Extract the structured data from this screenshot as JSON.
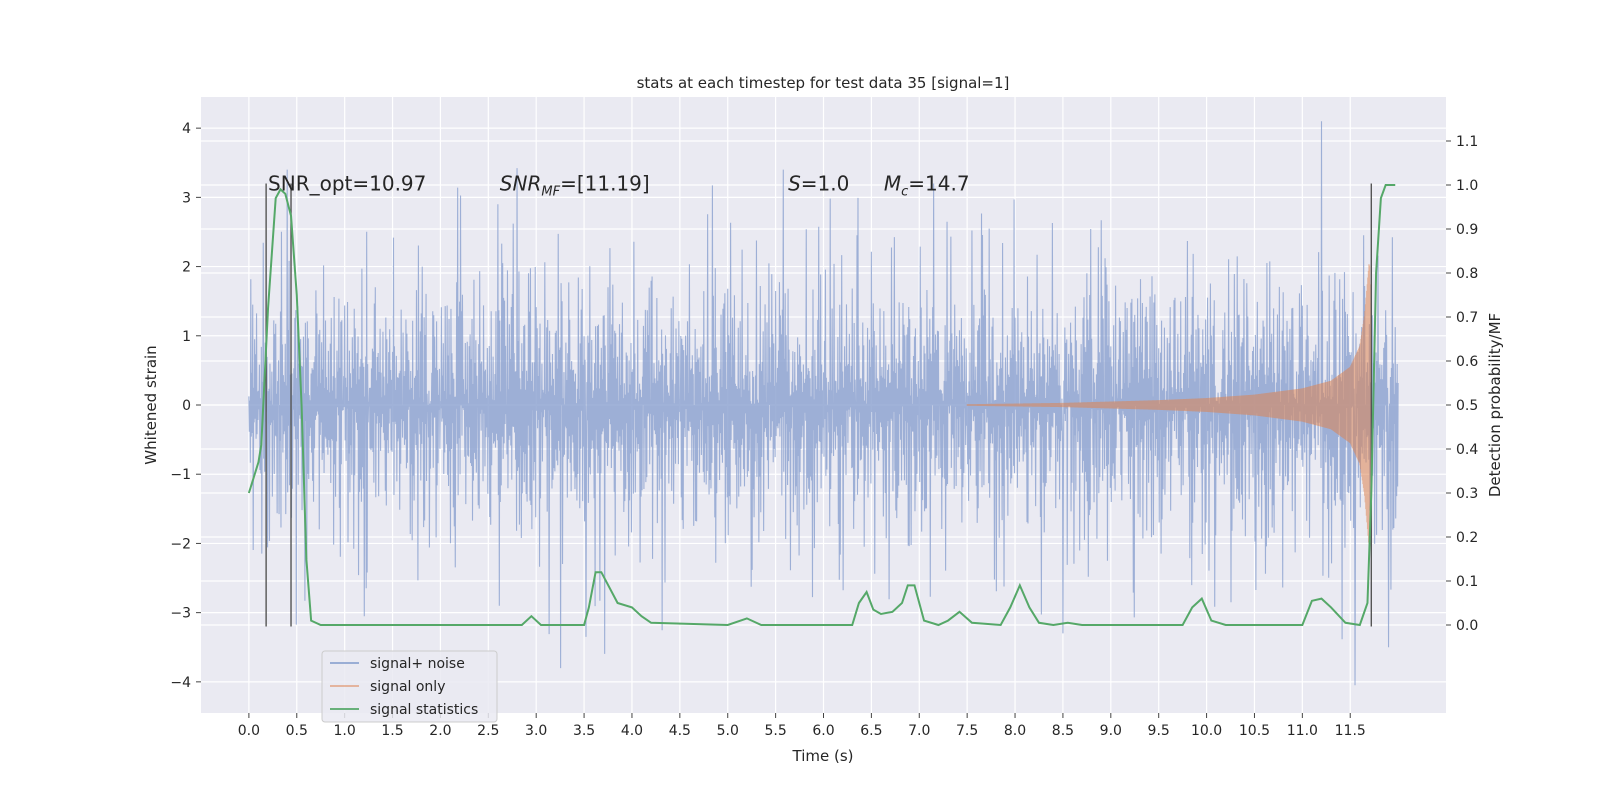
{
  "chart_data": {
    "type": "line",
    "title": "stats at each timestep for test data 35 [signal=1]",
    "xlabel": "Time (s)",
    "ylabel": "Whitened strain",
    "y2label": "Detection probability/MF",
    "xlim": [
      -0.5,
      12.5
    ],
    "ylim": [
      -4.45,
      4.45
    ],
    "y2lim": [
      -0.2,
      1.2
    ],
    "grid": true,
    "legend_position": "lower-left",
    "x_ticks": [
      "0.0",
      "0.5",
      "1.0",
      "1.5",
      "2.0",
      "2.5",
      "3.0",
      "3.5",
      "4.0",
      "4.5",
      "5.0",
      "5.5",
      "6.0",
      "6.5",
      "7.0",
      "7.5",
      "8.0",
      "8.5",
      "9.0",
      "9.5",
      "10.0",
      "10.5",
      "11.0",
      "11.5"
    ],
    "x_tick_values": [
      0.0,
      0.5,
      1.0,
      1.5,
      2.0,
      2.5,
      3.0,
      3.5,
      4.0,
      4.5,
      5.0,
      5.5,
      6.0,
      6.5,
      7.0,
      7.5,
      8.0,
      8.5,
      9.0,
      9.5,
      10.0,
      10.5,
      11.0,
      11.5
    ],
    "y_ticks": [
      "4",
      "3",
      "2",
      "1",
      "0",
      "−1",
      "−2",
      "−3",
      "−4"
    ],
    "y_tick_values": [
      4,
      3,
      2,
      1,
      0,
      -1,
      -2,
      -3,
      -4
    ],
    "y2_ticks": [
      "1.1",
      "1.0",
      "0.9",
      "0.8",
      "0.7",
      "0.6",
      "0.5",
      "0.4",
      "0.3",
      "0.2",
      "0.1",
      "0.0"
    ],
    "y2_tick_values": [
      1.1,
      1.0,
      0.9,
      0.8,
      0.7,
      0.6,
      0.5,
      0.4,
      0.3,
      0.2,
      0.1,
      0.0
    ],
    "annotations": [
      {
        "text": "SNR_opt=10.97",
        "x": 0.2,
        "y": 3.2
      },
      {
        "text": "SNR_MF=[11.19]",
        "x": 2.62,
        "y": 3.2
      },
      {
        "text": "S=1.0",
        "x": 5.63,
        "y": 3.2
      },
      {
        "text": "M_c=14.7",
        "x": 6.63,
        "y": 3.2
      }
    ],
    "vertical_markers": [
      {
        "x": 0.18,
        "ymin": -3.2,
        "ymax": 3.2
      },
      {
        "x": 0.44,
        "ymin": -3.2,
        "ymax": 3.2
      },
      {
        "x": 11.72,
        "ymin": -3.2,
        "ymax": 3.2
      }
    ],
    "series": [
      {
        "name": "signal+ noise",
        "color": "#8fa5d1",
        "t_range": [
          0.0,
          12.0
        ],
        "envelope": "noise with typical amplitude about 1.3 and peaks up to about 3.5, extreme peak 4.1 near t=11.2 and minimum -4.0 near t=11.55",
        "peaks": [
          {
            "x": 0.4,
            "y": 3.4
          },
          {
            "x": 2.6,
            "y": 2.9
          },
          {
            "x": 3.52,
            "y": -3.35
          },
          {
            "x": 5.58,
            "y": 3.4
          },
          {
            "x": 7.15,
            "y": 3.2
          },
          {
            "x": 8.5,
            "y": -3.3
          },
          {
            "x": 11.2,
            "y": 4.1
          },
          {
            "x": 11.55,
            "y": -4.05
          },
          {
            "x": 11.9,
            "y": -3.5
          }
        ]
      },
      {
        "name": "signal only",
        "color": "#dd8452",
        "t_range": [
          7.5,
          11.8
        ],
        "envelope_points": [
          {
            "x": 7.5,
            "y": 0.01
          },
          {
            "x": 8.5,
            "y": 0.03
          },
          {
            "x": 9.5,
            "y": 0.07
          },
          {
            "x": 10.0,
            "y": 0.1
          },
          {
            "x": 10.5,
            "y": 0.15
          },
          {
            "x": 11.0,
            "y": 0.24
          },
          {
            "x": 11.3,
            "y": 0.35
          },
          {
            "x": 11.5,
            "y": 0.55
          },
          {
            "x": 11.6,
            "y": 0.85
          },
          {
            "x": 11.65,
            "y": 1.3
          },
          {
            "x": 11.7,
            "y": 2.1
          },
          {
            "x": 11.72,
            "y": 1.2
          }
        ]
      },
      {
        "name": "signal statistics",
        "color": "#55a868",
        "axis": "y2",
        "points": [
          {
            "x": 0.0,
            "y": 0.3
          },
          {
            "x": 0.1,
            "y": 0.37
          },
          {
            "x": 0.13,
            "y": 0.41
          },
          {
            "x": 0.2,
            "y": 0.72
          },
          {
            "x": 0.28,
            "y": 0.97
          },
          {
            "x": 0.33,
            "y": 0.99
          },
          {
            "x": 0.38,
            "y": 0.98
          },
          {
            "x": 0.44,
            "y": 0.93
          },
          {
            "x": 0.5,
            "y": 0.75
          },
          {
            "x": 0.55,
            "y": 0.5
          },
          {
            "x": 0.6,
            "y": 0.15
          },
          {
            "x": 0.65,
            "y": 0.01
          },
          {
            "x": 0.75,
            "y": 0.0
          },
          {
            "x": 2.85,
            "y": 0.0
          },
          {
            "x": 2.95,
            "y": 0.02
          },
          {
            "x": 3.05,
            "y": 0.0
          },
          {
            "x": 3.5,
            "y": 0.0
          },
          {
            "x": 3.55,
            "y": 0.04
          },
          {
            "x": 3.62,
            "y": 0.12
          },
          {
            "x": 3.68,
            "y": 0.12
          },
          {
            "x": 3.85,
            "y": 0.05
          },
          {
            "x": 4.0,
            "y": 0.04
          },
          {
            "x": 4.1,
            "y": 0.02
          },
          {
            "x": 4.2,
            "y": 0.005
          },
          {
            "x": 5.0,
            "y": 0.0
          },
          {
            "x": 5.2,
            "y": 0.015
          },
          {
            "x": 5.35,
            "y": 0.0
          },
          {
            "x": 6.3,
            "y": 0.0
          },
          {
            "x": 6.37,
            "y": 0.05
          },
          {
            "x": 6.45,
            "y": 0.075
          },
          {
            "x": 6.52,
            "y": 0.035
          },
          {
            "x": 6.6,
            "y": 0.025
          },
          {
            "x": 6.72,
            "y": 0.03
          },
          {
            "x": 6.82,
            "y": 0.05
          },
          {
            "x": 6.88,
            "y": 0.09
          },
          {
            "x": 6.95,
            "y": 0.09
          },
          {
            "x": 7.05,
            "y": 0.01
          },
          {
            "x": 7.2,
            "y": 0.0
          },
          {
            "x": 7.3,
            "y": 0.01
          },
          {
            "x": 7.42,
            "y": 0.03
          },
          {
            "x": 7.55,
            "y": 0.005
          },
          {
            "x": 7.85,
            "y": 0.0
          },
          {
            "x": 7.95,
            "y": 0.04
          },
          {
            "x": 8.05,
            "y": 0.09
          },
          {
            "x": 8.15,
            "y": 0.04
          },
          {
            "x": 8.25,
            "y": 0.005
          },
          {
            "x": 8.4,
            "y": 0.0
          },
          {
            "x": 8.55,
            "y": 0.005
          },
          {
            "x": 8.7,
            "y": 0.0
          },
          {
            "x": 9.75,
            "y": 0.0
          },
          {
            "x": 9.85,
            "y": 0.04
          },
          {
            "x": 9.95,
            "y": 0.06
          },
          {
            "x": 10.05,
            "y": 0.01
          },
          {
            "x": 10.2,
            "y": 0.0
          },
          {
            "x": 11.0,
            "y": 0.0
          },
          {
            "x": 11.1,
            "y": 0.055
          },
          {
            "x": 11.2,
            "y": 0.06
          },
          {
            "x": 11.3,
            "y": 0.04
          },
          {
            "x": 11.45,
            "y": 0.005
          },
          {
            "x": 11.6,
            "y": 0.0
          },
          {
            "x": 11.68,
            "y": 0.05
          },
          {
            "x": 11.72,
            "y": 0.3
          },
          {
            "x": 11.77,
            "y": 0.8
          },
          {
            "x": 11.82,
            "y": 0.97
          },
          {
            "x": 11.87,
            "y": 1.0
          },
          {
            "x": 11.97,
            "y": 1.0
          }
        ]
      }
    ]
  }
}
